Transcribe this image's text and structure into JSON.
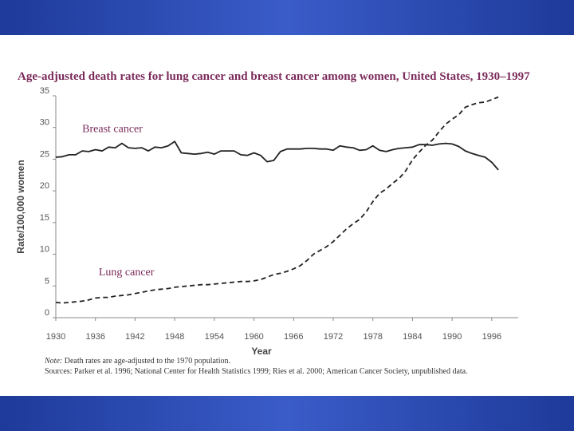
{
  "slide": {
    "band_color": "#2b4bb5"
  },
  "chart_data": {
    "type": "line",
    "title": "Age-adjusted death rates for lung cancer and breast cancer among women, United States, 1930–1997",
    "xlabel": "Year",
    "ylabel": "Rate/100,000 women",
    "xlim": [
      1930,
      2000
    ],
    "ylim": [
      0,
      35
    ],
    "xticks": [
      1930,
      1936,
      1942,
      1948,
      1954,
      1960,
      1966,
      1972,
      1978,
      1984,
      1990,
      1996
    ],
    "yticks": [
      0,
      5,
      10,
      15,
      20,
      25,
      30,
      35
    ],
    "grid": false,
    "series": [
      {
        "name": "Breast cancer",
        "style": "solid",
        "color": "#222222",
        "label_at": [
          1934,
          29.3
        ],
        "x": [
          1930,
          1931,
          1932,
          1933,
          1934,
          1935,
          1936,
          1937,
          1938,
          1939,
          1940,
          1941,
          1942,
          1943,
          1944,
          1945,
          1946,
          1947,
          1948,
          1949,
          1950,
          1951,
          1952,
          1953,
          1954,
          1955,
          1956,
          1957,
          1958,
          1959,
          1960,
          1961,
          1962,
          1963,
          1964,
          1965,
          1966,
          1967,
          1968,
          1969,
          1970,
          1971,
          1972,
          1973,
          1974,
          1975,
          1976,
          1977,
          1978,
          1979,
          1980,
          1981,
          1982,
          1983,
          1984,
          1985,
          1986,
          1987,
          1988,
          1989,
          1990,
          1991,
          1992,
          1993,
          1994,
          1995,
          1996,
          1997
        ],
        "values": [
          25.3,
          25.4,
          25.7,
          25.7,
          26.3,
          26.2,
          26.5,
          26.3,
          26.9,
          26.8,
          27.5,
          26.8,
          26.7,
          26.8,
          26.3,
          26.9,
          26.8,
          27.1,
          27.8,
          26.0,
          25.9,
          25.8,
          25.9,
          26.1,
          25.8,
          26.3,
          26.3,
          26.3,
          25.7,
          25.6,
          26.0,
          25.6,
          24.6,
          24.8,
          26.2,
          26.6,
          26.6,
          26.6,
          26.7,
          26.7,
          26.6,
          26.6,
          26.4,
          27.1,
          26.9,
          26.8,
          26.4,
          26.5,
          27.1,
          26.4,
          26.2,
          26.5,
          26.7,
          26.8,
          26.9,
          27.3,
          27.3,
          27.2,
          27.4,
          27.5,
          27.4,
          27.0,
          26.3,
          25.9,
          25.6,
          25.3,
          24.5,
          23.3
        ]
      },
      {
        "name": "Lung cancer",
        "style": "dashed",
        "color": "#222222",
        "label_at": [
          1936.5,
          6.7
        ],
        "x": [
          1930,
          1931,
          1932,
          1933,
          1934,
          1935,
          1936,
          1937,
          1938,
          1939,
          1940,
          1941,
          1942,
          1943,
          1944,
          1945,
          1946,
          1947,
          1948,
          1949,
          1950,
          1951,
          1952,
          1953,
          1954,
          1955,
          1956,
          1957,
          1958,
          1959,
          1960,
          1961,
          1962,
          1963,
          1964,
          1965,
          1966,
          1967,
          1968,
          1969,
          1970,
          1971,
          1972,
          1973,
          1974,
          1975,
          1976,
          1977,
          1978,
          1979,
          1980,
          1981,
          1982,
          1983,
          1984,
          1985,
          1986,
          1987,
          1988,
          1989,
          1990,
          1991,
          1992,
          1993,
          1994,
          1995,
          1996,
          1997
        ],
        "values": [
          2.4,
          2.3,
          2.4,
          2.5,
          2.6,
          2.8,
          3.1,
          3.2,
          3.2,
          3.4,
          3.5,
          3.6,
          3.8,
          4.0,
          4.2,
          4.4,
          4.5,
          4.6,
          4.8,
          4.9,
          5.0,
          5.1,
          5.2,
          5.2,
          5.3,
          5.4,
          5.5,
          5.6,
          5.7,
          5.7,
          5.8,
          6.0,
          6.4,
          6.8,
          7.0,
          7.3,
          7.7,
          8.2,
          9.0,
          10.0,
          10.6,
          11.2,
          12.0,
          13.0,
          14.0,
          14.8,
          15.5,
          16.7,
          18.3,
          19.6,
          20.3,
          21.2,
          22.0,
          23.2,
          24.9,
          26.1,
          27.2,
          28.0,
          29.3,
          30.5,
          31.3,
          32.0,
          33.2,
          33.6,
          33.9,
          34.0,
          34.4,
          34.8
        ]
      }
    ]
  },
  "footnote": {
    "note_label": "Note:",
    "note_text": " Death rates are age-adjusted to the 1970 population.",
    "sources_text": "Sources: Parker et al. 1996; National Center for Health Statistics 1999; Ries et al. 2000; American Cancer Society, unpublished data."
  }
}
